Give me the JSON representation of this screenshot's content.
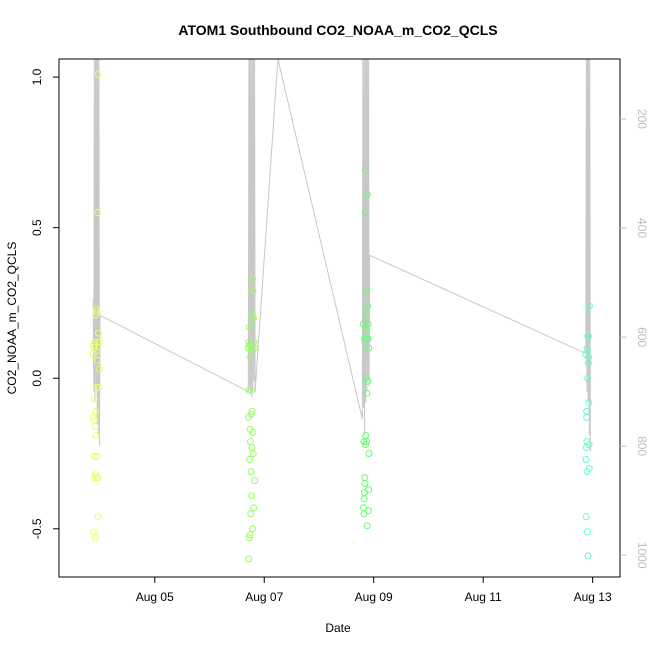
{
  "chart_data": {
    "type": "scatter",
    "title": "ATOM1 Southbound CO2_NOAA_m_CO2_QCLS",
    "xlabel": "Date",
    "ylabel": "CO2_NOAA_m_CO2_QCLS",
    "x_axis": {
      "type": "date",
      "ticks": [
        "Aug 05",
        "Aug 07",
        "Aug 09",
        "Aug 11",
        "Aug 13"
      ],
      "xlim": [
        "2016-08-03 06:00",
        "2016-08-13 12:00"
      ]
    },
    "y_axis": {
      "ticks": [
        "-0.5",
        "0.0",
        "0.5",
        "1.0"
      ],
      "ylim": [
        -0.66,
        1.06
      ]
    },
    "y2_axis": {
      "side": "right",
      "reversed": true,
      "ticks": [
        "200",
        "400",
        "600",
        "800",
        "1000"
      ],
      "ylim": [
        1040,
        90
      ],
      "color": "#bdbdbd"
    },
    "grid": false,
    "legend": "none",
    "colors": {
      "gradient": [
        "#ffff66",
        "#66ff66",
        "#66ffcc"
      ],
      "pressure_line": "#c8c8c8"
    },
    "series": [
      {
        "kind": "points",
        "x": [
          "2016-08-03 21:00",
          "2016-08-03 21:05",
          "2016-08-03 21:10",
          "2016-08-03 21:15",
          "2016-08-03 21:20",
          "2016-08-03 21:25",
          "2016-08-03 21:30",
          "2016-08-03 21:35",
          "2016-08-03 21:40",
          "2016-08-03 21:45",
          "2016-08-03 21:50",
          "2016-08-03 21:55",
          "2016-08-03 22:00",
          "2016-08-03 22:05",
          "2016-08-03 22:10",
          "2016-08-03 22:15",
          "2016-08-03 22:20",
          "2016-08-03 22:25",
          "2016-08-03 22:30",
          "2016-08-03 22:35",
          "2016-08-03 22:40",
          "2016-08-03 22:45",
          "2016-08-03 22:50",
          "2016-08-03 22:55",
          "2016-08-03 23:00",
          "2016-08-03 23:05",
          "2016-08-03 23:10",
          "2016-08-03 23:15",
          "2016-08-03 23:20",
          "2016-08-03 23:30",
          "2016-08-03 23:40",
          "2016-08-03 23:50"
        ],
        "y": [
          0.08,
          -0.13,
          -0.51,
          0.11,
          0.1,
          -0.07,
          -0.14,
          -0.26,
          -0.33,
          0.12,
          -0.16,
          -0.53,
          -0.32,
          -0.11,
          0.21,
          0.09,
          -0.19,
          0.23,
          -0.03,
          0.22,
          -0.26,
          -0.33,
          0.06,
          0.12,
          0.55,
          -0.46,
          -0.33,
          1.01,
          0.15,
          -0.03,
          0.03,
          0.12
        ]
      },
      {
        "kind": "points",
        "x": [
          "2016-08-06 17:00",
          "2016-08-06 17:05",
          "2016-08-06 17:10",
          "2016-08-06 17:15",
          "2016-08-06 17:20",
          "2016-08-06 17:25",
          "2016-08-06 17:30",
          "2016-08-06 17:35",
          "2016-08-06 17:40",
          "2016-08-06 17:45",
          "2016-08-06 17:50",
          "2016-08-06 17:55",
          "2016-08-06 18:00",
          "2016-08-06 18:05",
          "2016-08-06 18:10",
          "2016-08-06 18:15",
          "2016-08-06 18:20",
          "2016-08-06 18:25",
          "2016-08-06 18:30",
          "2016-08-06 18:35",
          "2016-08-06 18:40",
          "2016-08-06 18:45",
          "2016-08-06 18:50",
          "2016-08-06 18:55",
          "2016-08-06 19:00",
          "2016-08-06 19:05",
          "2016-08-06 19:10",
          "2016-08-06 19:15",
          "2016-08-06 19:20",
          "2016-08-06 19:30",
          "2016-08-06 19:40",
          "2016-08-06 19:50"
        ],
        "y": [
          0.1,
          -0.13,
          -0.6,
          0.12,
          -0.04,
          -0.53,
          0.17,
          0.11,
          -0.27,
          -0.52,
          -0.17,
          -0.21,
          0.07,
          -0.45,
          0.1,
          -0.31,
          -0.12,
          -0.04,
          -0.39,
          -0.23,
          -0.11,
          0.21,
          -0.5,
          -0.18,
          0.33,
          0.29,
          -0.25,
          0.2,
          -0.43,
          0.12,
          0.1,
          -0.34
        ]
      },
      {
        "kind": "points",
        "x": [
          "2016-08-08 19:30",
          "2016-08-08 19:35",
          "2016-08-08 19:40",
          "2016-08-08 19:45",
          "2016-08-08 19:50",
          "2016-08-08 19:55",
          "2016-08-08 20:00",
          "2016-08-08 20:05",
          "2016-08-08 20:10",
          "2016-08-08 20:15",
          "2016-08-08 20:20",
          "2016-08-08 20:25",
          "2016-08-08 20:30",
          "2016-08-08 20:35",
          "2016-08-08 20:40",
          "2016-08-08 20:45",
          "2016-08-08 20:50",
          "2016-08-08 20:55",
          "2016-08-08 21:00",
          "2016-08-08 21:05",
          "2016-08-08 21:10",
          "2016-08-08 21:15",
          "2016-08-08 21:20",
          "2016-08-08 21:25",
          "2016-08-08 21:30",
          "2016-08-08 21:35",
          "2016-08-08 21:40",
          "2016-08-08 21:45",
          "2016-08-08 21:50",
          "2016-08-08 21:55"
        ],
        "y": [
          0.18,
          -0.43,
          -0.21,
          -0.45,
          -0.4,
          -0.38,
          0.13,
          -0.33,
          -0.35,
          0.55,
          0.69,
          -0.22,
          -0.19,
          0.0,
          0.16,
          0.21,
          -0.21,
          -0.05,
          0.29,
          -0.49,
          0.13,
          0.61,
          0.24,
          -0.01,
          0.13,
          0.18,
          -0.44,
          -0.37,
          0.1,
          -0.25
        ]
      },
      {
        "kind": "points",
        "x": [
          "2016-08-12 21:00",
          "2016-08-12 21:05",
          "2016-08-12 21:10",
          "2016-08-12 21:15",
          "2016-08-12 21:20",
          "2016-08-12 21:25",
          "2016-08-12 21:30",
          "2016-08-12 21:35",
          "2016-08-12 21:40",
          "2016-08-12 21:45",
          "2016-08-12 21:50",
          "2016-08-12 21:55",
          "2016-08-12 22:00",
          "2016-08-12 22:05",
          "2016-08-12 22:10",
          "2016-08-12 22:15",
          "2016-08-12 22:20",
          "2016-08-12 22:25",
          "2016-08-12 22:30",
          "2016-08-12 22:35"
        ],
        "y": [
          0.08,
          -0.27,
          -0.46,
          -0.23,
          -0.11,
          -0.13,
          -0.21,
          -0.31,
          0.1,
          -0.51,
          0.0,
          0.14,
          -0.59,
          0.05,
          0.14,
          0.07,
          -0.08,
          -0.22,
          -0.3,
          0.24
        ]
      },
      {
        "kind": "line",
        "axis": "y2",
        "x": [
          "2016-08-03 21:00",
          "2016-08-03 21:15",
          "2016-08-03 21:30",
          "2016-08-03 21:45",
          "2016-08-03 22:00",
          "2016-08-03 22:15",
          "2016-08-03 22:30",
          "2016-08-03 22:45",
          "2016-08-03 23:00",
          "2016-08-03 23:15",
          "2016-08-03 23:30",
          "2016-08-03 23:45",
          "2016-08-04 00:00",
          "2016-08-06 17:00",
          "2016-08-06 17:15",
          "2016-08-06 17:30",
          "2016-08-06 17:45",
          "2016-08-06 18:00",
          "2016-08-06 18:15",
          "2016-08-06 18:30",
          "2016-08-06 18:45",
          "2016-08-06 19:00",
          "2016-08-06 19:15",
          "2016-08-06 19:30",
          "2016-08-06 19:45",
          "2016-08-06 20:00",
          "2016-08-07 06:00",
          "2016-08-08 19:00",
          "2016-08-08 19:15",
          "2016-08-08 19:30",
          "2016-08-08 19:45",
          "2016-08-08 20:00",
          "2016-08-08 20:15",
          "2016-08-08 20:30",
          "2016-08-08 20:45",
          "2016-08-08 21:00",
          "2016-08-08 21:15",
          "2016-08-08 21:30",
          "2016-08-08 21:45",
          "2016-08-08 22:00",
          "2016-08-08 22:15",
          "2016-08-12 21:00",
          "2016-08-12 21:15",
          "2016-08-12 21:30",
          "2016-08-12 21:45",
          "2016-08-12 22:00",
          "2016-08-12 22:15",
          "2016-08-12 22:30",
          "2016-08-12 22:45",
          "2016-08-12 23:00"
        ],
        "y": [
          530,
          700,
          60,
          720,
          60,
          690,
          60,
          760,
          60,
          780,
          60,
          800,
          560,
          700,
          60,
          690,
          60,
          700,
          60,
          710,
          60,
          700,
          60,
          680,
          60,
          700,
          60,
          750,
          60,
          730,
          60,
          780,
          60,
          720,
          60,
          700,
          60,
          680,
          60,
          690,
          450,
          630,
          60,
          700,
          60,
          720,
          60,
          780,
          60,
          810
        ]
      }
    ]
  }
}
